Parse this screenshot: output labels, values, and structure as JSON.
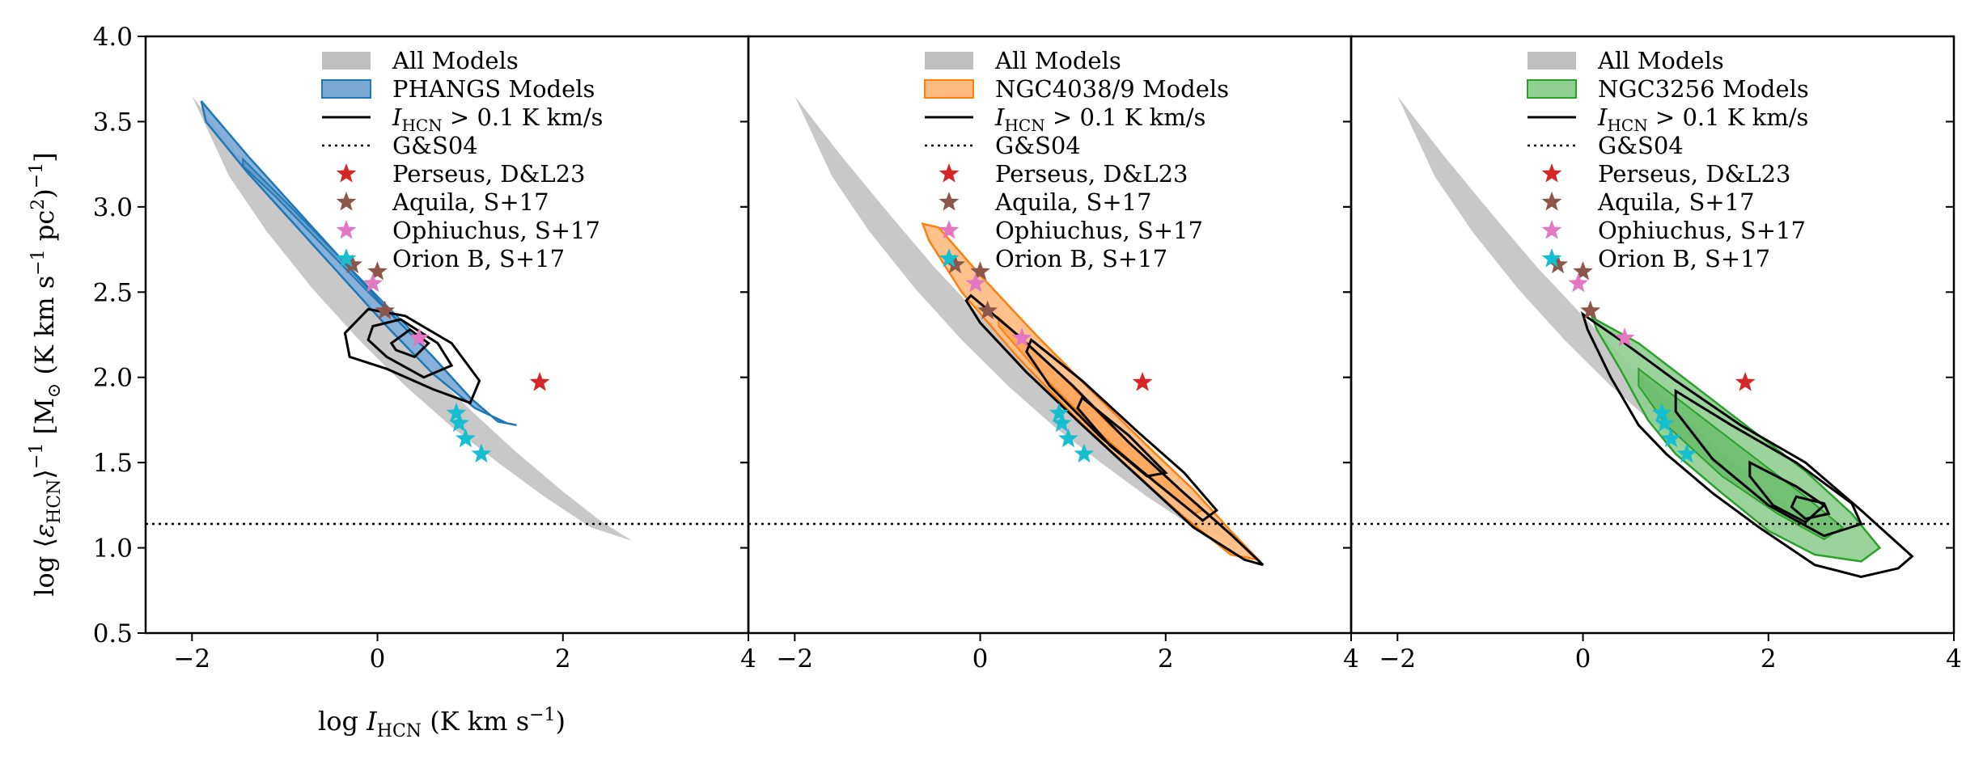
{
  "chart_data": {
    "type": "contour",
    "xlabel": "log I_HCN (K km s^-1)",
    "ylabel": "log ⟨ε_HCN⟩^-1 [M⊙ (K km s^-1 pc^2)^-1]",
    "xlim": [
      -2.5,
      4
    ],
    "ylim": [
      0.5,
      4.0
    ],
    "xticks": [
      -2,
      0,
      2,
      4
    ],
    "yticks": [
      0.5,
      1.0,
      1.5,
      2.0,
      2.5,
      3.0,
      3.5,
      4.0
    ],
    "xtick_labels": [
      "−2",
      "0",
      "2",
      "4"
    ],
    "ytick_labels": [
      "0.5",
      "1.0",
      "1.5",
      "2.0",
      "2.5",
      "3.0",
      "3.5",
      "4.0"
    ],
    "grid": false,
    "legend_position": "top-right",
    "gs04_level": 1.14,
    "all_models": {
      "color": "#c8c8c8",
      "upper": [
        [
          -2.0,
          3.65
        ],
        [
          -1.5,
          3.3
        ],
        [
          -1.0,
          2.97
        ],
        [
          -0.5,
          2.65
        ],
        [
          0.0,
          2.36
        ],
        [
          0.5,
          2.08
        ],
        [
          1.0,
          1.81
        ],
        [
          1.5,
          1.56
        ],
        [
          2.0,
          1.33
        ],
        [
          2.4,
          1.16
        ],
        [
          2.75,
          1.04
        ]
      ],
      "lower": [
        [
          2.75,
          1.04
        ],
        [
          2.3,
          1.12
        ],
        [
          1.8,
          1.3
        ],
        [
          1.3,
          1.5
        ],
        [
          0.8,
          1.71
        ],
        [
          0.3,
          1.95
        ],
        [
          -0.2,
          2.22
        ],
        [
          -0.7,
          2.52
        ],
        [
          -1.2,
          2.86
        ],
        [
          -1.6,
          3.18
        ],
        [
          -2.0,
          3.65
        ]
      ]
    },
    "stars": [
      {
        "name": "Perseus, D&L23",
        "color": "#d62728",
        "points": [
          [
            1.75,
            1.97
          ]
        ]
      },
      {
        "name": "Aquila, S+17",
        "color": "#8c564b",
        "points": [
          [
            -0.27,
            2.66
          ],
          [
            0.0,
            2.62
          ],
          [
            0.08,
            2.39
          ]
        ]
      },
      {
        "name": "Ophiuchus, S+17",
        "color": "#e377c2",
        "points": [
          [
            -0.05,
            2.55
          ],
          [
            0.45,
            2.23
          ]
        ]
      },
      {
        "name": "Orion B, S+17",
        "color": "#17becf",
        "points": [
          [
            0.85,
            1.79
          ],
          [
            0.88,
            1.73
          ],
          [
            0.95,
            1.64
          ],
          [
            1.12,
            1.55
          ]
        ]
      }
    ],
    "panels": [
      {
        "id": "phangs",
        "color": "#1f77b4",
        "fill": "#7aa9d4",
        "legend_entries": [
          "All Models",
          "PHANGS Models",
          "I_HCN > 0.1 K km/s",
          "G&S04",
          "Perseus, D&L23",
          "Aquila, S+17",
          "Ophiuchus, S+17",
          "Orion B, S+17"
        ],
        "model_outer": [
          [
            -1.9,
            3.62
          ],
          [
            -1.4,
            3.3
          ],
          [
            -0.9,
            3.0
          ],
          [
            -0.4,
            2.7
          ],
          [
            0.1,
            2.4
          ],
          [
            0.6,
            2.12
          ],
          [
            1.0,
            1.88
          ],
          [
            1.3,
            1.74
          ],
          [
            1.5,
            1.72
          ],
          [
            1.4,
            1.73
          ],
          [
            1.05,
            1.82
          ],
          [
            0.6,
            2.02
          ],
          [
            0.1,
            2.3
          ],
          [
            -0.4,
            2.6
          ],
          [
            -0.9,
            2.9
          ],
          [
            -1.4,
            3.2
          ],
          [
            -1.85,
            3.5
          ]
        ],
        "model_inner": [
          [
            -1.45,
            3.28
          ],
          [
            -0.9,
            2.98
          ],
          [
            -0.4,
            2.7
          ],
          [
            0.1,
            2.42
          ],
          [
            0.5,
            2.2
          ],
          [
            0.35,
            2.26
          ],
          [
            -0.1,
            2.5
          ],
          [
            -0.6,
            2.78
          ],
          [
            -1.1,
            3.06
          ],
          [
            -1.45,
            3.24
          ]
        ],
        "black_contours": [
          [
            [
              -0.35,
              2.26
            ],
            [
              -0.1,
              2.4
            ],
            [
              0.3,
              2.36
            ],
            [
              0.8,
              2.2
            ],
            [
              1.1,
              1.98
            ],
            [
              1.0,
              1.85
            ],
            [
              0.6,
              1.93
            ],
            [
              0.1,
              2.05
            ],
            [
              -0.3,
              2.12
            ]
          ],
          [
            [
              -0.05,
              2.3
            ],
            [
              0.25,
              2.34
            ],
            [
              0.65,
              2.2
            ],
            [
              0.8,
              2.07
            ],
            [
              0.5,
              2.0
            ],
            [
              0.1,
              2.12
            ],
            [
              -0.1,
              2.22
            ]
          ],
          [
            [
              0.15,
              2.2
            ],
            [
              0.35,
              2.28
            ],
            [
              0.55,
              2.2
            ],
            [
              0.4,
              2.12
            ],
            [
              0.2,
              2.16
            ]
          ]
        ]
      },
      {
        "id": "ngc4038",
        "color": "#ff7f0e",
        "fill": "#ffbb7f",
        "legend_entries": [
          "All Models",
          "NGC4038/9 Models",
          "I_HCN > 0.1 K km/s",
          "G&S04",
          "Perseus, D&L23",
          "Aquila, S+17",
          "Ophiuchus, S+17",
          "Orion B, S+17"
        ],
        "model_outer": [
          [
            -0.62,
            2.9
          ],
          [
            -0.45,
            2.88
          ],
          [
            0.0,
            2.6
          ],
          [
            0.6,
            2.25
          ],
          [
            1.2,
            1.92
          ],
          [
            1.8,
            1.6
          ],
          [
            2.3,
            1.34
          ],
          [
            2.7,
            1.1
          ],
          [
            3.0,
            0.93
          ],
          [
            2.7,
            0.96
          ],
          [
            2.2,
            1.18
          ],
          [
            1.6,
            1.47
          ],
          [
            1.0,
            1.78
          ],
          [
            0.4,
            2.12
          ],
          [
            -0.2,
            2.5
          ],
          [
            -0.55,
            2.8
          ]
        ],
        "model_inner": [
          [
            0.2,
            2.35
          ],
          [
            0.8,
            2.05
          ],
          [
            1.4,
            1.72
          ],
          [
            2.0,
            1.42
          ],
          [
            2.4,
            1.22
          ],
          [
            2.3,
            1.2
          ],
          [
            1.8,
            1.42
          ],
          [
            1.2,
            1.72
          ],
          [
            0.6,
            2.05
          ],
          [
            0.2,
            2.3
          ]
        ],
        "black_contours": [
          [
            [
              -0.1,
              2.48
            ],
            [
              0.4,
              2.25
            ],
            [
              1.0,
              1.95
            ],
            [
              1.6,
              1.62
            ],
            [
              2.2,
              1.32
            ],
            [
              2.7,
              1.08
            ],
            [
              3.05,
              0.9
            ],
            [
              2.85,
              0.93
            ],
            [
              2.3,
              1.12
            ],
            [
              1.7,
              1.42
            ],
            [
              1.1,
              1.72
            ],
            [
              0.5,
              2.03
            ],
            [
              0.0,
              2.32
            ],
            [
              -0.15,
              2.45
            ]
          ],
          [
            [
              0.55,
              2.22
            ],
            [
              1.1,
              1.98
            ],
            [
              1.7,
              1.68
            ],
            [
              2.2,
              1.44
            ],
            [
              2.55,
              1.22
            ],
            [
              2.4,
              1.16
            ],
            [
              1.9,
              1.38
            ],
            [
              1.3,
              1.65
            ],
            [
              0.75,
              1.95
            ],
            [
              0.5,
              2.15
            ]
          ],
          [
            [
              1.1,
              1.88
            ],
            [
              1.6,
              1.66
            ],
            [
              2.0,
              1.44
            ],
            [
              1.8,
              1.42
            ],
            [
              1.4,
              1.6
            ],
            [
              1.05,
              1.82
            ]
          ]
        ]
      },
      {
        "id": "ngc3256",
        "color": "#2ca02c",
        "fill": "#8fcf8f",
        "legend_entries": [
          "All Models",
          "NGC3256 Models",
          "I_HCN > 0.1 K km/s",
          "G&S04",
          "Perseus, D&L23",
          "Aquila, S+17",
          "Ophiuchus, S+17",
          "Orion B, S+17"
        ],
        "model_outer": [
          [
            0.1,
            2.35
          ],
          [
            0.6,
            2.2
          ],
          [
            1.2,
            1.95
          ],
          [
            1.8,
            1.7
          ],
          [
            2.4,
            1.45
          ],
          [
            2.9,
            1.2
          ],
          [
            3.2,
            1.0
          ],
          [
            3.0,
            0.92
          ],
          [
            2.5,
            0.96
          ],
          [
            2.0,
            1.1
          ],
          [
            1.5,
            1.32
          ],
          [
            1.0,
            1.55
          ],
          [
            0.7,
            1.75
          ],
          [
            0.4,
            2.05
          ],
          [
            0.15,
            2.28
          ]
        ],
        "model_inner": [
          [
            0.6,
            2.05
          ],
          [
            1.2,
            1.8
          ],
          [
            1.8,
            1.55
          ],
          [
            2.4,
            1.3
          ],
          [
            2.8,
            1.12
          ],
          [
            2.6,
            1.05
          ],
          [
            2.1,
            1.2
          ],
          [
            1.5,
            1.42
          ],
          [
            0.9,
            1.72
          ],
          [
            0.6,
            1.95
          ]
        ],
        "black_contours": [
          [
            [
              0.0,
              2.37
            ],
            [
              0.4,
              2.22
            ],
            [
              1.0,
              1.98
            ],
            [
              1.7,
              1.72
            ],
            [
              2.4,
              1.5
            ],
            [
              3.0,
              1.22
            ],
            [
              3.55,
              0.95
            ],
            [
              3.4,
              0.88
            ],
            [
              3.0,
              0.83
            ],
            [
              2.5,
              0.9
            ],
            [
              1.9,
              1.12
            ],
            [
              1.4,
              1.32
            ],
            [
              0.9,
              1.55
            ],
            [
              0.6,
              1.72
            ],
            [
              0.3,
              2.0
            ],
            [
              0.05,
              2.28
            ]
          ],
          [
            [
              1.0,
              1.92
            ],
            [
              1.6,
              1.72
            ],
            [
              2.3,
              1.5
            ],
            [
              2.9,
              1.26
            ],
            [
              3.0,
              1.14
            ],
            [
              2.6,
              1.07
            ],
            [
              2.0,
              1.25
            ],
            [
              1.4,
              1.52
            ],
            [
              1.0,
              1.8
            ]
          ],
          [
            [
              1.8,
              1.5
            ],
            [
              2.3,
              1.36
            ],
            [
              2.6,
              1.25
            ],
            [
              2.4,
              1.15
            ],
            [
              2.05,
              1.25
            ],
            [
              1.8,
              1.42
            ]
          ],
          [
            [
              2.3,
              1.3
            ],
            [
              2.6,
              1.26
            ],
            [
              2.65,
              1.2
            ],
            [
              2.4,
              1.17
            ],
            [
              2.25,
              1.24
            ]
          ]
        ]
      }
    ]
  }
}
